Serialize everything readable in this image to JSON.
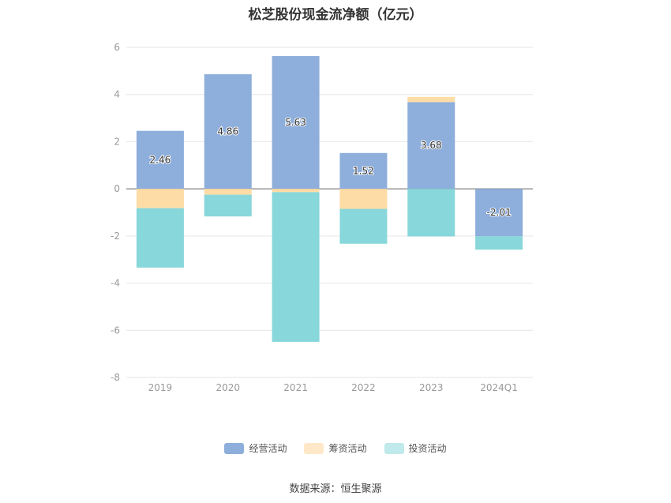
{
  "chart_data": {
    "type": "bar",
    "stacked": true,
    "title": "松芝股份现金流净额（亿元）",
    "categories": [
      "2019",
      "2020",
      "2021",
      "2022",
      "2023",
      "2024Q1"
    ],
    "ylim": [
      -8,
      6
    ],
    "yticks": [
      "6",
      "4",
      "2",
      "0",
      "-2",
      "-4",
      "-6",
      "-8"
    ],
    "ytick_values": [
      6,
      4,
      2,
      0,
      -2,
      -4,
      -6,
      -8
    ],
    "grid": true,
    "legend_position": "bottom",
    "series": [
      {
        "name": "经营活动",
        "color": "#8eaedb",
        "values": [
          2.46,
          4.86,
          5.63,
          1.52,
          3.68,
          -2.01
        ],
        "labels": [
          "2.46",
          "4.86",
          "5.63",
          "1.52",
          "3.68",
          "-2.01"
        ]
      },
      {
        "name": "筹资活动",
        "color": "#fedca6",
        "values": [
          -0.82,
          -0.25,
          -0.14,
          -0.85,
          0.22,
          0.0
        ]
      },
      {
        "name": "投资活动",
        "color": "#88d7da",
        "values": [
          -2.52,
          -0.92,
          -6.35,
          -1.48,
          -2.02,
          -0.57
        ]
      }
    ]
  },
  "source": "数据来源：恒生聚源"
}
